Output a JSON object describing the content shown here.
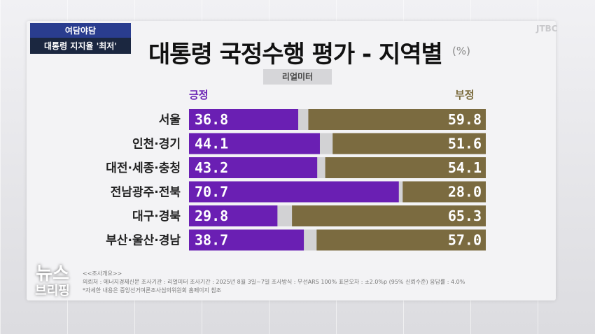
{
  "corner_tag": {
    "top": "여담야담",
    "bottom": "대통령 지지율 '최저'"
  },
  "title": "대통령 국정수행 평가 - 지역별",
  "unit": "(%)",
  "source_label": "리얼미터",
  "logo": {
    "line1": "뉴스",
    "line2": "브리핑"
  },
  "corner_mark": "JTBC",
  "colors": {
    "positive": "#6a1fb3",
    "negative": "#7b6b40",
    "gap": "#d2d2d4"
  },
  "chart_data": {
    "type": "bar",
    "stacked": true,
    "orientation": "horizontal",
    "categories": [
      "서울",
      "인천·경기",
      "대전·세종·충청",
      "전남광주·전북",
      "대구·경북",
      "부산·울산·경남"
    ],
    "series": [
      {
        "name": "긍정",
        "values": [
          36.8,
          44.1,
          43.2,
          70.7,
          29.8,
          38.7
        ]
      },
      {
        "name": "부정",
        "values": [
          59.8,
          51.6,
          54.1,
          28.0,
          65.3,
          57.0
        ]
      }
    ],
    "value_labels": {
      "positive": [
        "36.8",
        "44.1",
        "43.2",
        "70.7",
        "29.8",
        "38.7"
      ],
      "negative": [
        "59.8",
        "51.6",
        "54.1",
        "28.0",
        "65.3",
        "57.0"
      ]
    },
    "xlim": [
      0,
      100
    ]
  },
  "footnotes": [
    "<<조사개요>>",
    "의뢰처 : 에너지경제신문   조사기관 : 리얼미터   조사기간 : 2025년 8월 3일~7일   조사방식 : 무선ARS 100%   표본오차 : ±2.0%p (95% 신뢰수준)   응답률 : 4.0%",
    "*자세한 내용은 중앙선거여론조사심의위원회 홈페이지 참조"
  ]
}
